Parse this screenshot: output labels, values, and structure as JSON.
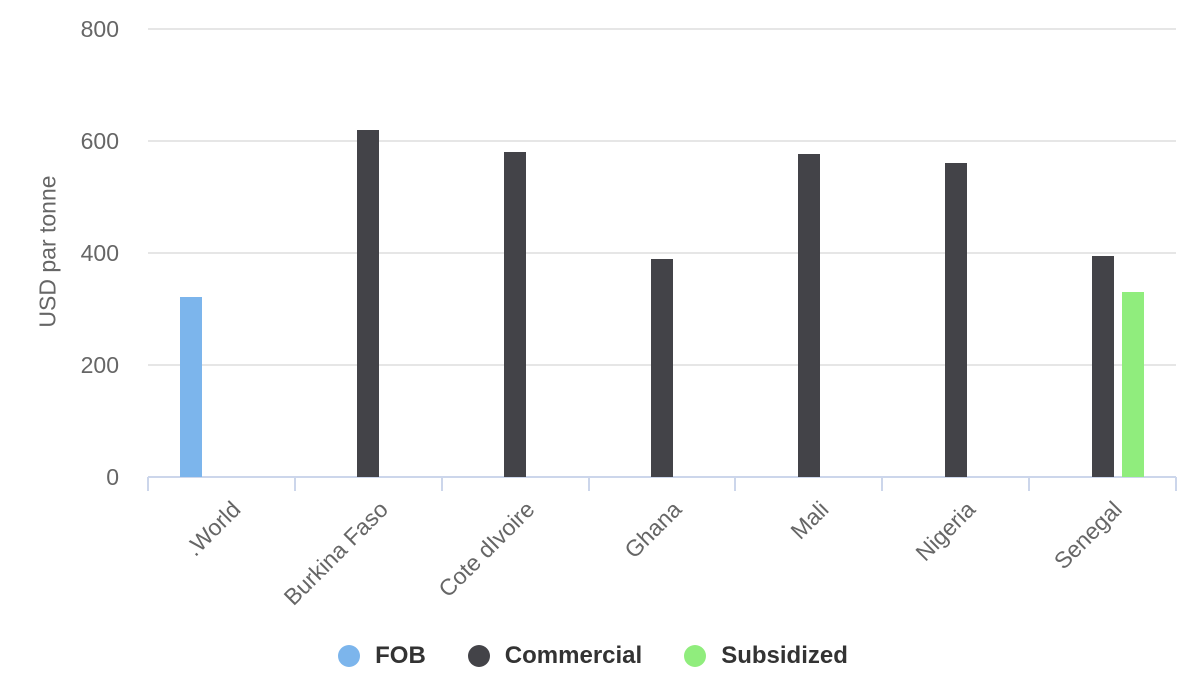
{
  "chart_data": {
    "type": "bar",
    "title": "",
    "xlabel": "",
    "ylabel": "USD par tonne",
    "categories": [
      ".World",
      "Burkina Faso",
      "Cote dIvoire",
      "Ghana",
      "Mali",
      "Nigeria",
      "Senegal"
    ],
    "series": [
      {
        "name": "FOB",
        "color": "#7cb5ec",
        "values": [
          322,
          null,
          null,
          null,
          null,
          null,
          null
        ]
      },
      {
        "name": "Commercial",
        "color": "#434348",
        "values": [
          null,
          620,
          580,
          390,
          577,
          560,
          395
        ]
      },
      {
        "name": "Subsidized",
        "color": "#90ed7d",
        "values": [
          null,
          null,
          null,
          null,
          null,
          null,
          330
        ]
      }
    ],
    "ylim": [
      0,
      800
    ],
    "yticks": [
      0,
      200,
      400,
      600,
      800
    ],
    "grid": true,
    "legend_position": "bottom",
    "colors": {
      "gridline": "#e6e6e6",
      "axis_line": "#ccd6eb",
      "axis_label_text": "#666666",
      "legend_text": "#333333",
      "background": "#ffffff"
    }
  }
}
